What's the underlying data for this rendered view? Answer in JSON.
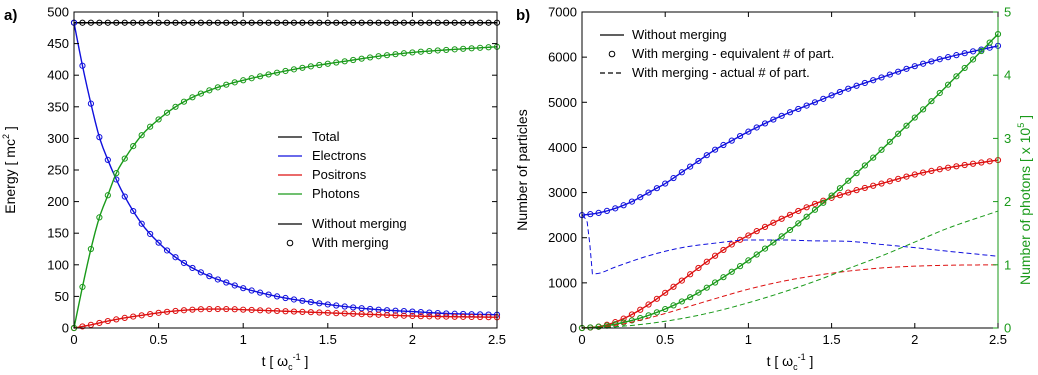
{
  "chart_data": [
    {
      "panel_label": "a)",
      "type": "line",
      "xlabel_main": "t [ ω",
      "xlabel_sub": "c",
      "xlabel_sup": "-1",
      "xlabel_end": " ]",
      "ylabel_main": "Energy [ mc",
      "ylabel_sup": "2",
      "ylabel_end": " ]",
      "xlim": [
        0,
        2.5
      ],
      "ylim": [
        0,
        500
      ],
      "xticks": [
        "0",
        "0.5",
        "1",
        "1.5",
        "2",
        "2.5"
      ],
      "yticks": [
        "0",
        "50",
        "100",
        "150",
        "200",
        "250",
        "300",
        "350",
        "400",
        "450",
        "500"
      ],
      "series": [
        {
          "name": "Total",
          "color": "#000000",
          "x": [
            0,
            0.25,
            0.5,
            0.75,
            1,
            1.25,
            1.5,
            1.75,
            2,
            2.25,
            2.5
          ],
          "y": [
            483,
            483,
            483,
            483,
            483,
            483,
            483,
            483,
            483,
            483,
            483
          ]
        },
        {
          "name": "Electrons",
          "color": "#1010dd",
          "x": [
            0,
            0.05,
            0.1,
            0.15,
            0.2,
            0.25,
            0.3,
            0.4,
            0.5,
            0.6,
            0.7,
            0.8,
            0.9,
            1,
            1.2,
            1.4,
            1.6,
            1.8,
            2,
            2.2,
            2.5
          ],
          "y": [
            483,
            415,
            355,
            302,
            266,
            235,
            208,
            165,
            135,
            112,
            95,
            82,
            72,
            63,
            50,
            41,
            34,
            29,
            26,
            23,
            21
          ]
        },
        {
          "name": "Positrons",
          "color": "#dd1010",
          "x": [
            0,
            0.1,
            0.2,
            0.3,
            0.4,
            0.5,
            0.6,
            0.7,
            0.8,
            0.9,
            1,
            1.2,
            1.4,
            1.6,
            1.8,
            2,
            2.2,
            2.5
          ],
          "y": [
            0,
            5,
            11,
            16,
            20,
            24,
            27,
            29,
            30,
            30,
            29,
            27,
            25,
            23,
            21,
            19,
            18,
            17
          ]
        },
        {
          "name": "Photons",
          "color": "#1a9a1a",
          "x": [
            0,
            0.05,
            0.1,
            0.15,
            0.2,
            0.25,
            0.3,
            0.4,
            0.5,
            0.6,
            0.7,
            0.8,
            0.9,
            1,
            1.2,
            1.4,
            1.6,
            1.8,
            2,
            2.2,
            2.5
          ],
          "y": [
            0,
            65,
            125,
            175,
            210,
            245,
            268,
            305,
            330,
            350,
            365,
            376,
            385,
            392,
            404,
            414,
            422,
            430,
            436,
            440,
            445
          ]
        }
      ],
      "legend_series": [
        "Total",
        "Electrons",
        "Positrons",
        "Photons"
      ],
      "legend_style": [
        "Without merging",
        "With merging"
      ]
    },
    {
      "panel_label": "b)",
      "type": "line",
      "xlabel_main": "t [ ω",
      "xlabel_sub": "c",
      "xlabel_sup": "-1",
      "xlabel_end": " ]",
      "ylabel": "Number of particles",
      "y2label_main": "Number of photons [ x 10",
      "y2label_sup": "5",
      "y2label_end": " ]",
      "xlim": [
        0,
        2.5
      ],
      "ylim": [
        0,
        7000
      ],
      "y2lim": [
        0,
        5
      ],
      "xticks": [
        "0",
        "0.5",
        "1",
        "1.5",
        "2",
        "2.5"
      ],
      "yticks": [
        "0",
        "1000",
        "2000",
        "3000",
        "4000",
        "5000",
        "6000",
        "7000"
      ],
      "y2ticks": [
        "0",
        "1",
        "2",
        "3",
        "4",
        "5"
      ],
      "series": [
        {
          "name": "Electrons",
          "color": "#1010dd",
          "axis": "left",
          "style": "solid",
          "x": [
            0,
            0.1,
            0.2,
            0.3,
            0.4,
            0.5,
            0.6,
            0.7,
            0.8,
            0.9,
            1,
            1.2,
            1.4,
            1.6,
            1.8,
            2,
            2.2,
            2.5
          ],
          "y": [
            2500,
            2550,
            2650,
            2800,
            3000,
            3200,
            3450,
            3700,
            3950,
            4150,
            4350,
            4700,
            5000,
            5300,
            5550,
            5800,
            6000,
            6250
          ]
        },
        {
          "name": "Positrons",
          "color": "#dd1010",
          "axis": "left",
          "style": "solid",
          "x": [
            0,
            0.1,
            0.2,
            0.3,
            0.4,
            0.5,
            0.6,
            0.7,
            0.8,
            0.9,
            1,
            1.2,
            1.4,
            1.6,
            1.8,
            2,
            2.2,
            2.5
          ],
          "y": [
            0,
            30,
            130,
            300,
            520,
            780,
            1050,
            1330,
            1600,
            1850,
            2050,
            2420,
            2750,
            3000,
            3200,
            3400,
            3550,
            3720
          ]
        },
        {
          "name": "Photons",
          "color": "#1a9a1a",
          "axis": "right",
          "style": "solid",
          "x": [
            0,
            0.1,
            0.2,
            0.3,
            0.4,
            0.5,
            0.6,
            0.7,
            0.8,
            0.9,
            1,
            1.2,
            1.4,
            1.6,
            1.8,
            2,
            2.2,
            2.5
          ],
          "y": [
            0,
            0.02,
            0.06,
            0.12,
            0.2,
            0.3,
            0.42,
            0.56,
            0.72,
            0.89,
            1.07,
            1.45,
            1.87,
            2.33,
            2.82,
            3.33,
            3.85,
            4.65
          ]
        },
        {
          "name": "Electrons",
          "color": "#1010dd",
          "axis": "left",
          "style": "dashed",
          "x": [
            0,
            0.04,
            0.06,
            0.1,
            0.2,
            0.4,
            0.6,
            0.8,
            1,
            1.2,
            1.4,
            1.6,
            1.8,
            2,
            2.2,
            2.5
          ],
          "y": [
            2500,
            2200,
            1200,
            1210,
            1350,
            1600,
            1780,
            1880,
            1950,
            1950,
            1930,
            1920,
            1850,
            1780,
            1700,
            1590
          ]
        },
        {
          "name": "Positrons",
          "color": "#dd1010",
          "axis": "left",
          "style": "dashed",
          "x": [
            0,
            0.2,
            0.4,
            0.6,
            0.8,
            1,
            1.2,
            1.4,
            1.6,
            1.8,
            2,
            2.2,
            2.5
          ],
          "y": [
            0,
            60,
            220,
            430,
            650,
            860,
            1030,
            1160,
            1260,
            1330,
            1370,
            1390,
            1400
          ]
        },
        {
          "name": "Photons",
          "color": "#1a9a1a",
          "axis": "right",
          "style": "dashed",
          "x": [
            0,
            0.2,
            0.4,
            0.6,
            0.8,
            1,
            1.2,
            1.4,
            1.6,
            1.8,
            2,
            2.2,
            2.5
          ],
          "y": [
            0,
            0.02,
            0.07,
            0.15,
            0.26,
            0.4,
            0.56,
            0.74,
            0.94,
            1.14,
            1.36,
            1.58,
            1.85
          ]
        }
      ],
      "legend": [
        "Without merging",
        "With merging - equivalent # of part.",
        "With merging - actual # of part."
      ],
      "legend_placement": "top-left",
      "right_axis_color": "#1a9a1a"
    }
  ]
}
